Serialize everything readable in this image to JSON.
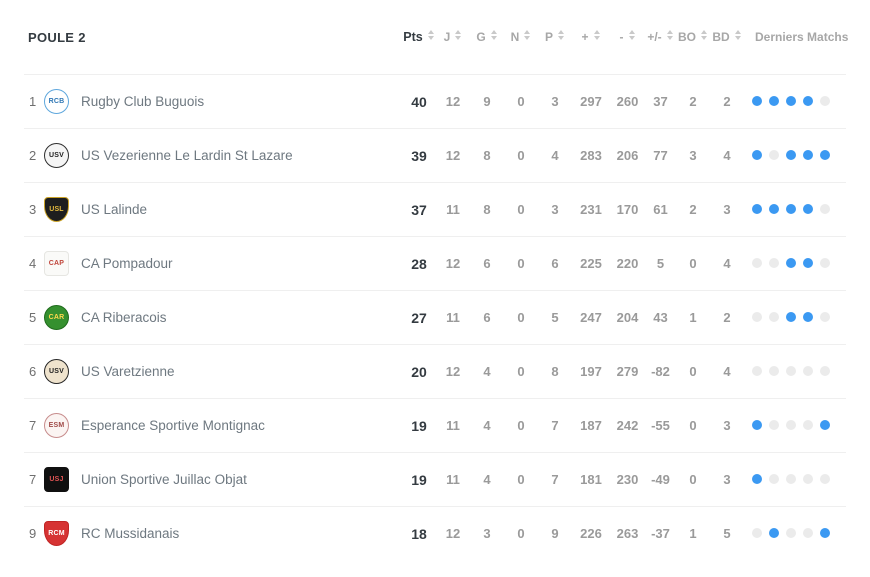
{
  "header": {
    "title": "POULE 2",
    "columns": [
      {
        "label": "Pts",
        "sortable": true
      },
      {
        "label": "J",
        "sortable": true
      },
      {
        "label": "G",
        "sortable": true
      },
      {
        "label": "N",
        "sortable": true
      },
      {
        "label": "P",
        "sortable": true
      },
      {
        "label": "+",
        "sortable": true
      },
      {
        "label": "-",
        "sortable": true
      },
      {
        "label": "+/-",
        "sortable": true
      },
      {
        "label": "BO",
        "sortable": true
      },
      {
        "label": "BD",
        "sortable": true
      },
      {
        "label": "Derniers Matchs",
        "sortable": false
      }
    ]
  },
  "colors": {
    "accent_blue": "#3b99f2",
    "dot_inactive": "#ebebeb",
    "divider": "#efefef",
    "header_text": "#a7a7a7",
    "caret": "#c9c9c9",
    "dark_text": "#343b41",
    "team_text": "#6e7880",
    "rank_text": "#6f6f6f",
    "stat_text": "#9a9a9a"
  },
  "standings": [
    {
      "rank": "1",
      "team": "Rugby Club Buguois",
      "logo": {
        "initials": "RCB",
        "bg": "#ffffff",
        "border": "#5ea7dd",
        "fg": "#2f77b5",
        "shape": "circle"
      },
      "pts": "40",
      "j": "12",
      "g": "9",
      "n": "0",
      "p": "3",
      "plus": "297",
      "minus": "260",
      "diff": "37",
      "bo": "2",
      "bd": "2",
      "last5": [
        true,
        true,
        true,
        true,
        false
      ]
    },
    {
      "rank": "2",
      "team": "US Vezerienne Le Lardin St Lazare",
      "logo": {
        "initials": "USV",
        "bg": "#f5f5f5",
        "border": "#2f2f2f",
        "fg": "#1d1d1d",
        "shape": "circle"
      },
      "pts": "39",
      "j": "12",
      "g": "8",
      "n": "0",
      "p": "4",
      "plus": "283",
      "minus": "206",
      "diff": "77",
      "bo": "3",
      "bd": "4",
      "last5": [
        true,
        false,
        true,
        true,
        true
      ]
    },
    {
      "rank": "3",
      "team": "US Lalinde",
      "logo": {
        "initials": "USL",
        "bg": "#1e1e1e",
        "border": "#caa227",
        "fg": "#e6bc3f",
        "shape": "shield"
      },
      "pts": "37",
      "j": "11",
      "g": "8",
      "n": "0",
      "p": "3",
      "plus": "231",
      "minus": "170",
      "diff": "61",
      "bo": "2",
      "bd": "3",
      "last5": [
        true,
        true,
        true,
        true,
        false
      ]
    },
    {
      "rank": "4",
      "team": "CA Pompadour",
      "logo": {
        "initials": "CAP",
        "bg": "#fafaf8",
        "border": "#e6e6e2",
        "fg": "#c0463c",
        "shape": "square"
      },
      "pts": "28",
      "j": "12",
      "g": "6",
      "n": "0",
      "p": "6",
      "plus": "225",
      "minus": "220",
      "diff": "5",
      "bo": "0",
      "bd": "4",
      "last5": [
        false,
        false,
        true,
        true,
        false
      ]
    },
    {
      "rank": "5",
      "team": "CA Riberacois",
      "logo": {
        "initials": "CAR",
        "bg": "#35902f",
        "border": "#1f6b1c",
        "fg": "#ffd84d",
        "shape": "circle"
      },
      "pts": "27",
      "j": "11",
      "g": "6",
      "n": "0",
      "p": "5",
      "plus": "247",
      "minus": "204",
      "diff": "43",
      "bo": "1",
      "bd": "2",
      "last5": [
        false,
        false,
        true,
        true,
        false
      ]
    },
    {
      "rank": "6",
      "team": "US Varetzienne",
      "logo": {
        "initials": "USV",
        "bg": "#efe3cd",
        "border": "#262626",
        "fg": "#1d1d1d",
        "shape": "circle"
      },
      "pts": "20",
      "j": "12",
      "g": "4",
      "n": "0",
      "p": "8",
      "plus": "197",
      "minus": "279",
      "diff": "-82",
      "bo": "0",
      "bd": "4",
      "last5": [
        false,
        false,
        false,
        false,
        false
      ]
    },
    {
      "rank": "7",
      "team": "Esperance Sportive Montignac",
      "logo": {
        "initials": "ESM",
        "bg": "#fbf4f2",
        "border": "#c78c8c",
        "fg": "#a04a48",
        "shape": "circle"
      },
      "pts": "19",
      "j": "11",
      "g": "4",
      "n": "0",
      "p": "7",
      "plus": "187",
      "minus": "242",
      "diff": "-55",
      "bo": "0",
      "bd": "3",
      "last5": [
        true,
        false,
        false,
        false,
        true
      ]
    },
    {
      "rank": "7",
      "team": "Union Sportive Juillac Objat",
      "logo": {
        "initials": "USJ",
        "bg": "#101010",
        "border": "#101010",
        "fg": "#e25555",
        "shape": "square"
      },
      "pts": "19",
      "j": "11",
      "g": "4",
      "n": "0",
      "p": "7",
      "plus": "181",
      "minus": "230",
      "diff": "-49",
      "bo": "0",
      "bd": "3",
      "last5": [
        true,
        false,
        false,
        false,
        false
      ]
    },
    {
      "rank": "9",
      "team": "RC Mussidanais",
      "logo": {
        "initials": "RCM",
        "bg": "#d63333",
        "border": "#c02424",
        "fg": "#ffffff",
        "shape": "shield"
      },
      "pts": "18",
      "j": "12",
      "g": "3",
      "n": "0",
      "p": "9",
      "plus": "226",
      "minus": "263",
      "diff": "-37",
      "bo": "1",
      "bd": "5",
      "last5": [
        false,
        true,
        false,
        false,
        true
      ]
    }
  ]
}
